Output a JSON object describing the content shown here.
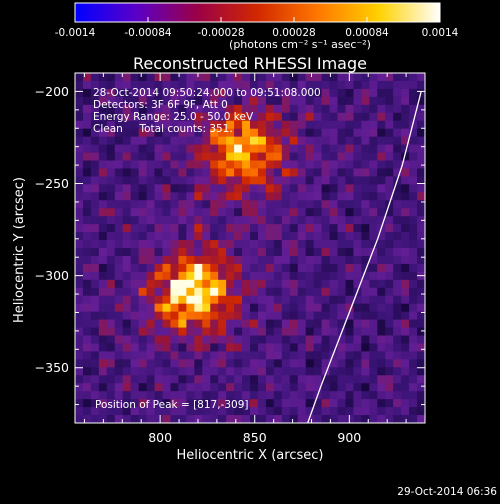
{
  "colorbar": {
    "ticks": [
      "-0.0014",
      "-0.00084",
      "-0.00028",
      "0.00028",
      "0.00084",
      "0.0014"
    ],
    "units_label": "(photons cm⁻² s⁻¹ asec⁻²)",
    "range": [
      -0.0014,
      0.0014
    ],
    "colors": [
      "#0000ff",
      "#5a00c8",
      "#9a0048",
      "#d22800",
      "#ff7800",
      "#ffd200",
      "#ffffff"
    ]
  },
  "annotations": {
    "time_range": "28-Oct-2014 09:50:24.000 to 09:51:08.000",
    "detectors": "Detectors: 3F 6F 9F, Att 0",
    "energy_range": "Energy Range: 25.0 - 50.0 keV",
    "clean_counts": "Clean     Total counts: 351.",
    "peak_position": "Position of Peak = [817,-309]"
  },
  "footer": {
    "timestamp": "29-Oct-2014 06:36"
  },
  "chart_data": {
    "type": "heatmap",
    "title": "Reconstructed RHESSI Image",
    "xlabel": "Heliocentric X (arcsec)",
    "ylabel": "Heliocentric Y (arcsec)",
    "xlim": [
      755,
      940
    ],
    "ylim": [
      -380,
      -190
    ],
    "xticks": [
      800,
      850,
      900
    ],
    "yticks": [
      -200,
      -250,
      -300,
      -350
    ],
    "peak": [
      817,
      -309
    ],
    "sources": [
      {
        "x": 817,
        "y": -309,
        "intensity": 1.0
      },
      {
        "x": 845,
        "y": -232,
        "intensity": 0.85
      }
    ],
    "limb_curve": [
      [
        938,
        -200
      ],
      [
        928,
        -240
      ],
      [
        915,
        -280
      ],
      [
        900,
        -320
      ],
      [
        885,
        -360
      ],
      [
        878,
        -380
      ]
    ],
    "colormap": "IDL red temperature",
    "grid": false
  }
}
